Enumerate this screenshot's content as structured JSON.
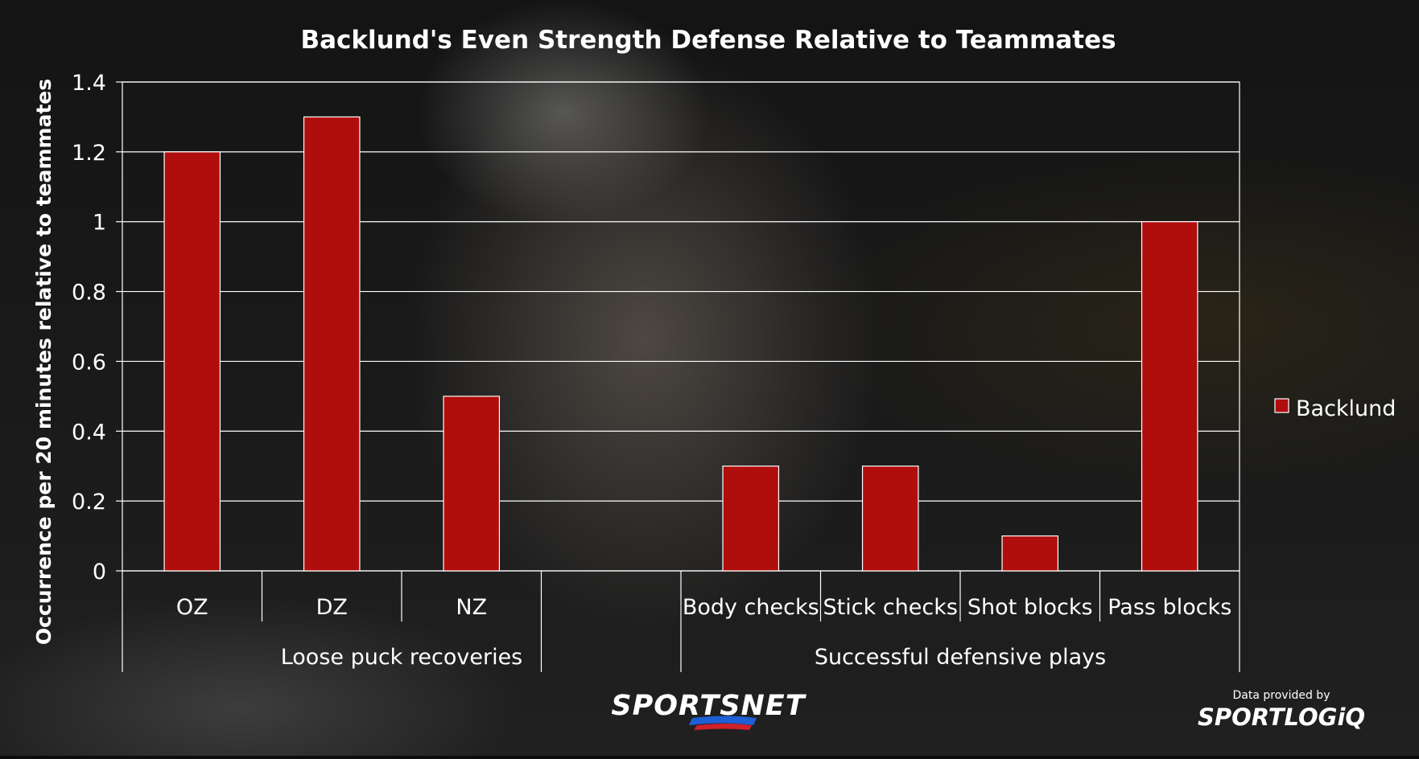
{
  "chart_data": {
    "type": "bar",
    "title": "Backlund's Even Strength Defense Relative to Teammates",
    "ylabel": "Occurrence per 20 minutes relative to teammates",
    "xlabel": "",
    "ylim": [
      0,
      1.4
    ],
    "yticks": [
      "0",
      "0.2",
      "0.4",
      "0.6",
      "0.8",
      "1",
      "1.2",
      "1.4"
    ],
    "grid": true,
    "legend_position": "right",
    "categories": [
      "OZ",
      "DZ",
      "NZ",
      "",
      "Body checks",
      "Stick checks",
      "Shot blocks",
      "Pass blocks"
    ],
    "groups": [
      {
        "label": "Loose puck recoveries",
        "span": [
          0,
          3
        ]
      },
      {
        "label": "Successful defensive plays",
        "span": [
          4,
          7
        ]
      }
    ],
    "series": [
      {
        "name": "Backlund",
        "color": "#b00d0d",
        "values": [
          1.2,
          1.3,
          0.5,
          null,
          0.3,
          0.3,
          0.1,
          1.0
        ]
      }
    ]
  },
  "branding": {
    "network": "SPORTSNET",
    "provider_caption": "Data provided by",
    "provider": "SPORTLOGiQ"
  }
}
